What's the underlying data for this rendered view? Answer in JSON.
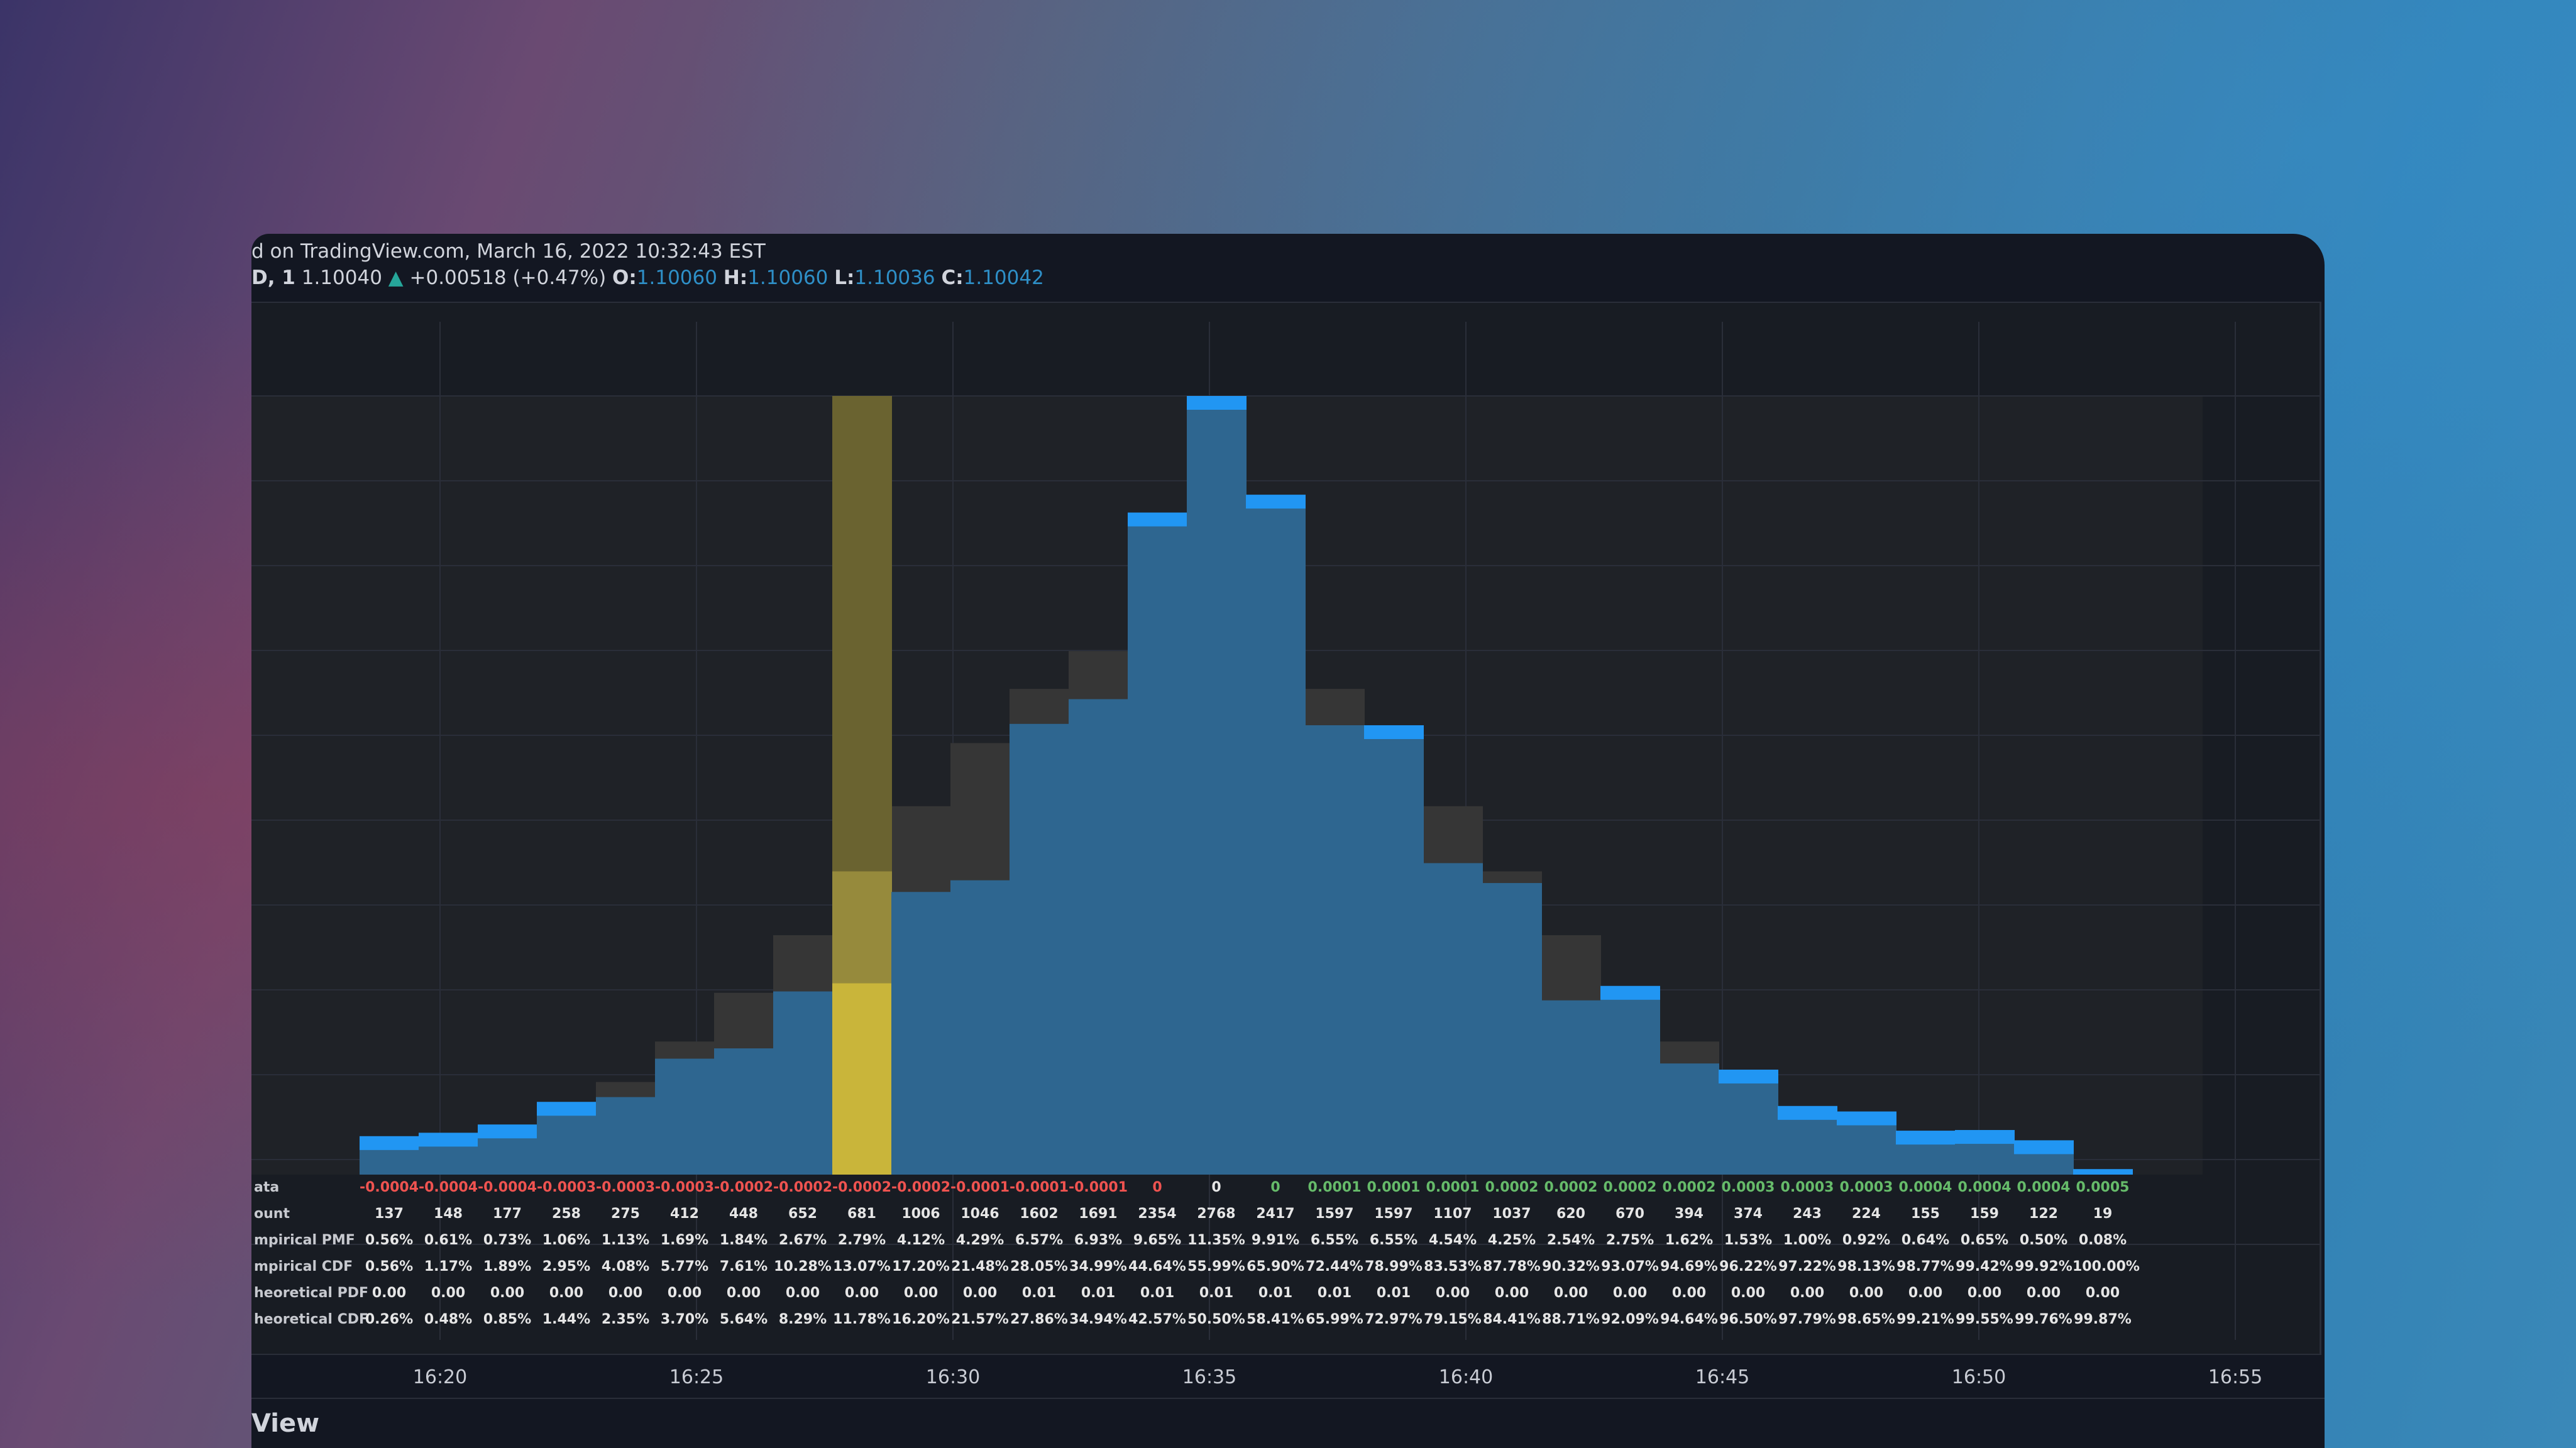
{
  "legend": {
    "line1": "d on TradingView.com, March 16, 2022 10:32:43 EST",
    "symbol": "D, 1",
    "price": "1.10040",
    "change_arrow": "▲",
    "change": "+0.00518 (+0.47%)",
    "o_label": "O:",
    "o_value": "1.10060",
    "h_label": "H:",
    "h_value": "1.10060",
    "l_label": "L:",
    "l_value": "1.10036",
    "c_label": "C:",
    "c_value": "1.10042"
  },
  "colors": {
    "empirical_bar": "#2e6690",
    "empirical_cap": "#2196f3",
    "theoretical_bar": "#363636",
    "highlight": "#c9b53a",
    "negative_text": "#ef5350",
    "positive_text": "#66bb6a"
  },
  "table": {
    "row_labels": [
      "ata",
      "ount",
      "mpirical PMF",
      "mpirical CDF",
      "heoretical PDF",
      "heoretical CDF"
    ],
    "rows": [
      [
        "-0.0004",
        "-0.0004",
        "-0.0004",
        "-0.0003",
        "-0.0003",
        "-0.0003",
        "-0.0002",
        "-0.0002",
        "-0.0002",
        "-0.0002",
        "-0.0001",
        "-0.0001",
        "-0.0001",
        "0",
        "0",
        "0",
        "0.0001",
        "0.0001",
        "0.0001",
        "0.0002",
        "0.0002",
        "0.0002",
        "0.0002",
        "0.0003",
        "0.0003",
        "0.0003",
        "0.0004",
        "0.0004",
        "0.0004",
        "0.0005"
      ],
      [
        "137",
        "148",
        "177",
        "258",
        "275",
        "412",
        "448",
        "652",
        "681",
        "1006",
        "1046",
        "1602",
        "1691",
        "2354",
        "2768",
        "2417",
        "1597",
        "1597",
        "1107",
        "1037",
        "620",
        "670",
        "394",
        "374",
        "243",
        "224",
        "155",
        "159",
        "122",
        "19"
      ],
      [
        "0.56%",
        "0.61%",
        "0.73%",
        "1.06%",
        "1.13%",
        "1.69%",
        "1.84%",
        "2.67%",
        "2.79%",
        "4.12%",
        "4.29%",
        "6.57%",
        "6.93%",
        "9.65%",
        "11.35%",
        "9.91%",
        "6.55%",
        "6.55%",
        "4.54%",
        "4.25%",
        "2.54%",
        "2.75%",
        "1.62%",
        "1.53%",
        "1.00%",
        "0.92%",
        "0.64%",
        "0.65%",
        "0.50%",
        "0.08%"
      ],
      [
        "0.56%",
        "1.17%",
        "1.89%",
        "2.95%",
        "4.08%",
        "5.77%",
        "7.61%",
        "10.28%",
        "13.07%",
        "17.20%",
        "21.48%",
        "28.05%",
        "34.99%",
        "44.64%",
        "55.99%",
        "65.90%",
        "72.44%",
        "78.99%",
        "83.53%",
        "87.78%",
        "90.32%",
        "93.07%",
        "94.69%",
        "96.22%",
        "97.22%",
        "98.13%",
        "98.77%",
        "99.42%",
        "99.92%",
        "100.00%"
      ],
      [
        "0.00",
        "0.00",
        "0.00",
        "0.00",
        "0.00",
        "0.00",
        "0.00",
        "0.00",
        "0.00",
        "0.00",
        "0.00",
        "0.01",
        "0.01",
        "0.01",
        "0.01",
        "0.01",
        "0.01",
        "0.01",
        "0.00",
        "0.00",
        "0.00",
        "0.00",
        "0.00",
        "0.00",
        "0.00",
        "0.00",
        "0.00",
        "0.00",
        "0.00",
        "0.00"
      ],
      [
        "0.26%",
        "0.48%",
        "0.85%",
        "1.44%",
        "2.35%",
        "3.70%",
        "5.64%",
        "8.29%",
        "11.78%",
        "16.20%",
        "21.57%",
        "27.86%",
        "34.94%",
        "42.57%",
        "50.50%",
        "58.41%",
        "65.99%",
        "72.97%",
        "79.15%",
        "84.41%",
        "88.71%",
        "92.09%",
        "94.64%",
        "96.50%",
        "97.79%",
        "98.65%",
        "99.21%",
        "99.55%",
        "99.76%",
        "99.87%"
      ]
    ]
  },
  "chart_data": {
    "type": "bar",
    "highlight_bin": 8,
    "x_time_labels": [
      "16:20",
      "16:25",
      "16:30",
      "16:35",
      "16:40",
      "16:45",
      "16:50",
      "16:55"
    ],
    "series": [
      {
        "name": "Empirical PMF",
        "values": [
          0.56,
          0.61,
          0.73,
          1.06,
          1.13,
          1.69,
          1.84,
          2.67,
          2.79,
          4.12,
          4.29,
          6.57,
          6.93,
          9.65,
          11.35,
          9.91,
          6.55,
          6.55,
          4.54,
          4.25,
          2.54,
          2.75,
          1.62,
          1.53,
          1.0,
          0.92,
          0.64,
          0.65,
          0.5,
          0.08
        ]
      },
      {
        "name": "Theoretical PDF",
        "values": [
          0.22,
          0.37,
          0.59,
          0.91,
          1.35,
          1.94,
          2.65,
          3.49,
          4.42,
          5.37,
          6.29,
          7.08,
          7.63,
          7.93,
          7.93,
          7.63,
          7.08,
          6.29,
          5.37,
          4.42,
          3.49,
          2.65,
          1.94,
          1.35,
          0.91,
          0.59,
          0.37,
          0.22,
          0.13,
          0.07
        ]
      }
    ]
  },
  "footer": {
    "label": "View"
  }
}
